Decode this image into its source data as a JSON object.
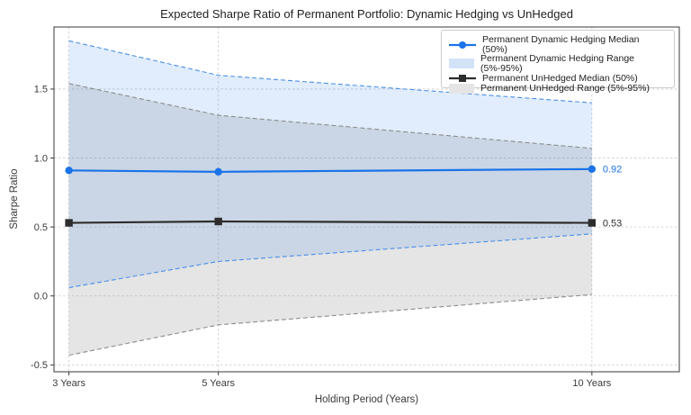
{
  "title": "Expected Sharpe Ratio of Permanent Portfolio: Dynamic Hedging vs UnHedged",
  "chart_data": {
    "type": "line",
    "x": [
      3,
      5,
      10
    ],
    "x_tick_labels": [
      "3 Years",
      "5 Years",
      "10 Years"
    ],
    "y_ticks": [
      -0.5,
      0.0,
      0.5,
      1.0,
      1.5
    ],
    "xlabel": "Holding Period (Years)",
    "ylabel": "Sharpe Ratio",
    "xlim": [
      2.8,
      11.17
    ],
    "ylim": [
      -0.55,
      1.95
    ],
    "grid": true,
    "legend_position": "upper right",
    "series": [
      {
        "name": "Permanent Dynamic Hedging Median (50%)",
        "type": "line",
        "marker": "circle",
        "color": "#1a73e8",
        "values": [
          0.91,
          0.9,
          0.92
        ]
      },
      {
        "name": "Permanent Dynamic Hedging Range (5%-95%)",
        "type": "band",
        "fill_color": "#1a73e8",
        "fill_opacity": 0.13,
        "edge_color": "#4a8fe7",
        "legend_fill": "#d2e3f8",
        "lower": [
          0.06,
          0.25,
          0.45
        ],
        "upper": [
          1.85,
          1.6,
          1.4
        ]
      },
      {
        "name": "Permanent UnHedged Median (50%)",
        "type": "line",
        "marker": "square",
        "color": "#2d2d2d",
        "values": [
          0.53,
          0.54,
          0.53
        ]
      },
      {
        "name": "Permanent UnHedged Range (5%-95%)",
        "type": "band",
        "fill_color": "#8a8a8a",
        "fill_opacity": 0.22,
        "edge_color": "#8c8c8c",
        "legend_fill": "#e5e5e5",
        "lower": [
          -0.43,
          -0.21,
          0.01
        ],
        "upper": [
          1.54,
          1.31,
          1.07
        ]
      }
    ],
    "annotations": [
      {
        "text": "0.92",
        "x": 10,
        "y": 0.92,
        "color": "#1a73e8"
      },
      {
        "text": "0.53",
        "x": 10,
        "y": 0.53,
        "color": "#2d2d2d"
      }
    ],
    "style": {
      "grid_color": "#c9c9c9",
      "spine_color": "#3a3a3a",
      "tick_text_color": "#3a3a3a",
      "title_color": "#1f1f1f",
      "background": "#ffffff"
    }
  }
}
